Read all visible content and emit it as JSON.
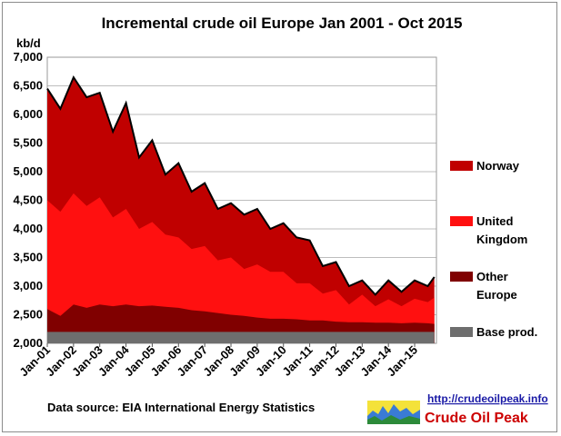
{
  "chart_data": {
    "type": "area",
    "stacked": true,
    "title": "Incremental crude oil Europe  Jan 2001 - Oct 2015",
    "unit_label": "kb/d",
    "ylim": [
      2000,
      7000
    ],
    "yticks": [
      "2,000",
      "2,500",
      "3,000",
      "3,500",
      "4,000",
      "4,500",
      "5,000",
      "5,500",
      "6,000",
      "6,500",
      "7,000"
    ],
    "grid": true,
    "legend_position": "right",
    "x_tick_labels": [
      "Jan-01",
      "Jan-02",
      "Jan-03",
      "Jan-04",
      "Jan-05",
      "Jan-06",
      "Jan-07",
      "Jan-08",
      "Jan-09",
      "Jan-10",
      "Jan-11",
      "Jan-12",
      "Jan-13",
      "Jan-14",
      "Jan-15"
    ],
    "x": [
      2001.0,
      2001.5,
      2002.0,
      2002.5,
      2003.0,
      2003.5,
      2004.0,
      2004.5,
      2005.0,
      2005.5,
      2006.0,
      2006.5,
      2007.0,
      2007.5,
      2008.0,
      2008.5,
      2009.0,
      2009.5,
      2010.0,
      2010.5,
      2011.0,
      2011.5,
      2012.0,
      2012.5,
      2013.0,
      2013.5,
      2014.0,
      2014.5,
      2015.0,
      2015.5,
      2015.75
    ],
    "cumulative_totals": {
      "Base prod.": [
        2200,
        2200,
        2200,
        2200,
        2200,
        2200,
        2200,
        2200,
        2200,
        2200,
        2200,
        2200,
        2200,
        2200,
        2200,
        2200,
        2200,
        2200,
        2200,
        2200,
        2200,
        2200,
        2200,
        2200,
        2200,
        2200,
        2200,
        2200,
        2200,
        2200,
        2200
      ],
      "Other Europe": [
        2600,
        2480,
        2680,
        2620,
        2680,
        2650,
        2680,
        2650,
        2660,
        2640,
        2620,
        2580,
        2560,
        2530,
        2500,
        2480,
        2450,
        2430,
        2430,
        2420,
        2400,
        2400,
        2380,
        2370,
        2370,
        2360,
        2360,
        2350,
        2360,
        2350,
        2340
      ],
      "United Kingdom": [
        4500,
        4300,
        4620,
        4400,
        4550,
        4200,
        4350,
        4000,
        4120,
        3900,
        3850,
        3650,
        3700,
        3450,
        3500,
        3300,
        3380,
        3250,
        3250,
        3050,
        3050,
        2870,
        2930,
        2680,
        2850,
        2650,
        2770,
        2650,
        2780,
        2720,
        2800
      ],
      "Norway": [
        6450,
        6100,
        6650,
        6300,
        6380,
        5700,
        6200,
        5250,
        5550,
        4950,
        5150,
        4650,
        4800,
        4350,
        4450,
        4250,
        4350,
        4000,
        4100,
        3850,
        3800,
        3350,
        3420,
        3000,
        3100,
        2850,
        3100,
        2900,
        3100,
        3000,
        3160
      ]
    },
    "series": [
      {
        "name": "Norway",
        "color": "#c00000"
      },
      {
        "name": "United Kingdom",
        "color": "#ff1010"
      },
      {
        "name": "Other Europe",
        "color": "#800000"
      },
      {
        "name": "Base prod.",
        "color": "#6e6e6e"
      }
    ]
  },
  "legend": {
    "norway": [
      "Norway"
    ],
    "uk": [
      "United",
      "Kingdom"
    ],
    "other": [
      "Other",
      "Europe"
    ],
    "base": [
      "Base prod."
    ]
  },
  "footer": {
    "source": "Data source: EIA International Energy Statistics",
    "url": "http://crudeoilpeak.info",
    "brand": "Crude Oil Peak"
  }
}
